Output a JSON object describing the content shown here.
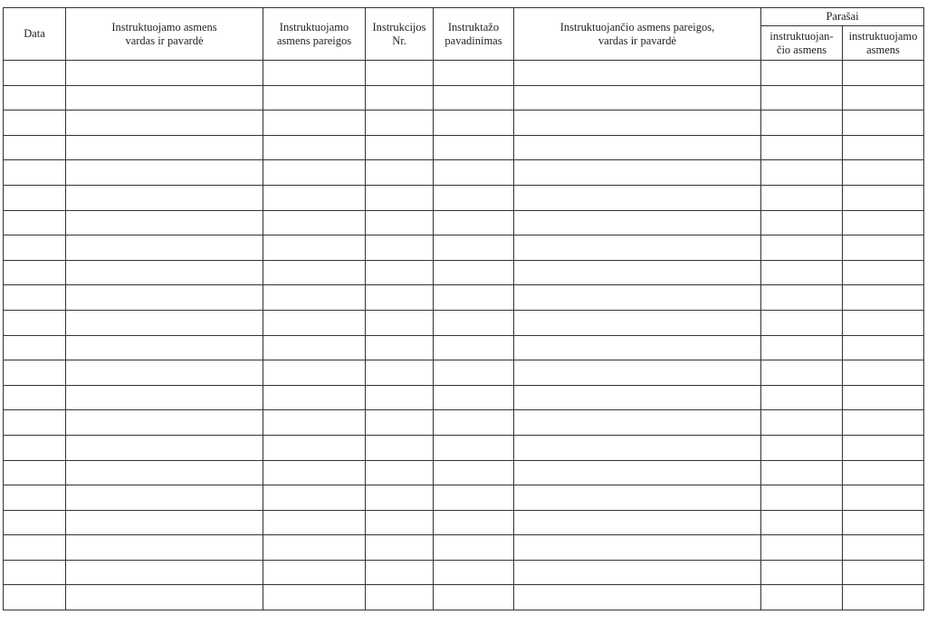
{
  "header": {
    "date": "Data",
    "trainee_name": "Instruktuojamo asmens\nvardas ir pavardė",
    "trainee_position": "Instruktuojamo\nasmens pareigos",
    "instruction_no": "Instrukcijos\nNr.",
    "briefing_name": "Instruktažo\npavadinimas",
    "instructor": "Instruktuojančio asmens pareigos,\nvardas ir pavardė",
    "signatures": "Parašai",
    "signature_instructor": "instruktuojan-\nčio asmens",
    "signature_trainee": "instruktuojamo\nasmens"
  },
  "rows": [
    [
      "",
      "",
      "",
      "",
      "",
      "",
      "",
      ""
    ],
    [
      "",
      "",
      "",
      "",
      "",
      "",
      "",
      ""
    ],
    [
      "",
      "",
      "",
      "",
      "",
      "",
      "",
      ""
    ],
    [
      "",
      "",
      "",
      "",
      "",
      "",
      "",
      ""
    ],
    [
      "",
      "",
      "",
      "",
      "",
      "",
      "",
      ""
    ],
    [
      "",
      "",
      "",
      "",
      "",
      "",
      "",
      ""
    ],
    [
      "",
      "",
      "",
      "",
      "",
      "",
      "",
      ""
    ],
    [
      "",
      "",
      "",
      "",
      "",
      "",
      "",
      ""
    ],
    [
      "",
      "",
      "",
      "",
      "",
      "",
      "",
      ""
    ],
    [
      "",
      "",
      "",
      "",
      "",
      "",
      "",
      ""
    ],
    [
      "",
      "",
      "",
      "",
      "",
      "",
      "",
      ""
    ],
    [
      "",
      "",
      "",
      "",
      "",
      "",
      "",
      ""
    ],
    [
      "",
      "",
      "",
      "",
      "",
      "",
      "",
      ""
    ],
    [
      "",
      "",
      "",
      "",
      "",
      "",
      "",
      ""
    ],
    [
      "",
      "",
      "",
      "",
      "",
      "",
      "",
      ""
    ],
    [
      "",
      "",
      "",
      "",
      "",
      "",
      "",
      ""
    ],
    [
      "",
      "",
      "",
      "",
      "",
      "",
      "",
      ""
    ],
    [
      "",
      "",
      "",
      "",
      "",
      "",
      "",
      ""
    ],
    [
      "",
      "",
      "",
      "",
      "",
      "",
      "",
      ""
    ],
    [
      "",
      "",
      "",
      "",
      "",
      "",
      "",
      ""
    ],
    [
      "",
      "",
      "",
      "",
      "",
      "",
      "",
      ""
    ],
    [
      "",
      "",
      "",
      "",
      "",
      "",
      "",
      ""
    ]
  ]
}
